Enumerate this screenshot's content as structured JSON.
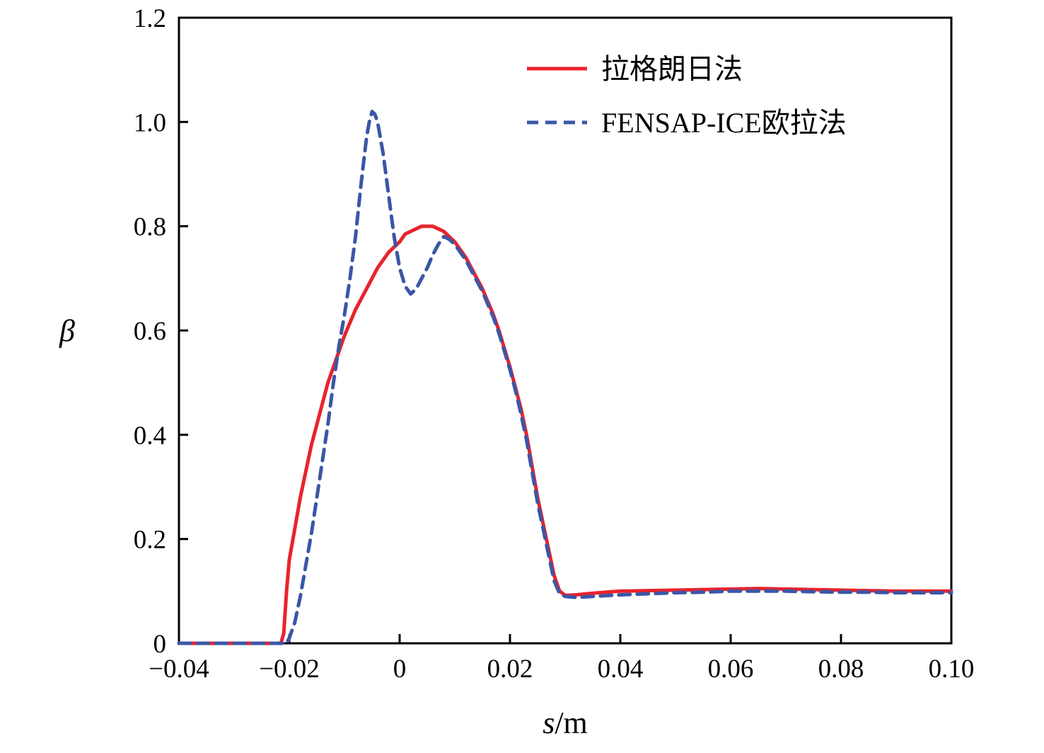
{
  "chart_data": {
    "type": "line",
    "title": "",
    "xlabel_var": "s",
    "xlabel_unit": "/m",
    "ylabel": "β",
    "xlim": [
      -0.04,
      0.1
    ],
    "ylim": [
      0,
      1.2
    ],
    "grid": false,
    "xticks": [
      -0.04,
      -0.02,
      0,
      0.02,
      0.04,
      0.06,
      0.08,
      0.1
    ],
    "xtick_labels": [
      "−0.04",
      "−0.02",
      "0",
      "0.02",
      "0.04",
      "0.06",
      "0.08",
      "0.10"
    ],
    "yticks": [
      0,
      0.2,
      0.4,
      0.6,
      0.8,
      1.0,
      1.2
    ],
    "ytick_labels": [
      "0",
      "0.2",
      "0.4",
      "0.6",
      "0.8",
      "1.0",
      "1.2"
    ],
    "legend": {
      "position": "upper-center-right",
      "items": [
        {
          "label": "拉格朗日法",
          "color": "#e8232d",
          "dash": ""
        },
        {
          "label": "FENSAP-ICE欧拉法",
          "color": "#3b56a7",
          "dash": "16 10"
        }
      ]
    },
    "series": [
      {
        "id": "lagrangian",
        "name": "拉格朗日法",
        "color": "#e8232d",
        "dash": "",
        "points": [
          [
            -0.04,
            0
          ],
          [
            -0.034,
            0
          ],
          [
            -0.028,
            0
          ],
          [
            -0.024,
            0
          ],
          [
            -0.0215,
            0
          ],
          [
            -0.021,
            0.02
          ],
          [
            -0.0205,
            0.1
          ],
          [
            -0.02,
            0.16
          ],
          [
            -0.019,
            0.22
          ],
          [
            -0.018,
            0.28
          ],
          [
            -0.017,
            0.33
          ],
          [
            -0.016,
            0.38
          ],
          [
            -0.015,
            0.42
          ],
          [
            -0.014,
            0.46
          ],
          [
            -0.013,
            0.5
          ],
          [
            -0.012,
            0.53
          ],
          [
            -0.011,
            0.56
          ],
          [
            -0.01,
            0.59
          ],
          [
            -0.009,
            0.615
          ],
          [
            -0.008,
            0.64
          ],
          [
            -0.007,
            0.66
          ],
          [
            -0.006,
            0.68
          ],
          [
            -0.005,
            0.7
          ],
          [
            -0.004,
            0.72
          ],
          [
            -0.003,
            0.735
          ],
          [
            -0.002,
            0.75
          ],
          [
            -0.001,
            0.76
          ],
          [
            0.0,
            0.77
          ],
          [
            0.001,
            0.785
          ],
          [
            0.002,
            0.79
          ],
          [
            0.003,
            0.795
          ],
          [
            0.004,
            0.8
          ],
          [
            0.005,
            0.8
          ],
          [
            0.006,
            0.8
          ],
          [
            0.007,
            0.795
          ],
          [
            0.008,
            0.79
          ],
          [
            0.009,
            0.78
          ],
          [
            0.01,
            0.77
          ],
          [
            0.011,
            0.755
          ],
          [
            0.012,
            0.74
          ],
          [
            0.013,
            0.72
          ],
          [
            0.014,
            0.7
          ],
          [
            0.015,
            0.68
          ],
          [
            0.016,
            0.655
          ],
          [
            0.017,
            0.63
          ],
          [
            0.018,
            0.6
          ],
          [
            0.019,
            0.565
          ],
          [
            0.02,
            0.53
          ],
          [
            0.021,
            0.49
          ],
          [
            0.022,
            0.45
          ],
          [
            0.023,
            0.4
          ],
          [
            0.024,
            0.34
          ],
          [
            0.025,
            0.28
          ],
          [
            0.026,
            0.23
          ],
          [
            0.027,
            0.18
          ],
          [
            0.028,
            0.13
          ],
          [
            0.029,
            0.1
          ],
          [
            0.03,
            0.092
          ],
          [
            0.032,
            0.093
          ],
          [
            0.035,
            0.096
          ],
          [
            0.04,
            0.1
          ],
          [
            0.045,
            0.101
          ],
          [
            0.05,
            0.102
          ],
          [
            0.055,
            0.103
          ],
          [
            0.06,
            0.104
          ],
          [
            0.065,
            0.105
          ],
          [
            0.07,
            0.104
          ],
          [
            0.075,
            0.103
          ],
          [
            0.08,
            0.102
          ],
          [
            0.085,
            0.101
          ],
          [
            0.09,
            0.1
          ],
          [
            0.095,
            0.1
          ],
          [
            0.1,
            0.1
          ]
        ]
      },
      {
        "id": "fensap-ice-eulerian",
        "name": "FENSAP-ICE欧拉法",
        "color": "#3b56a7",
        "dash": "16 10",
        "points": [
          [
            -0.04,
            0
          ],
          [
            -0.034,
            0
          ],
          [
            -0.028,
            0
          ],
          [
            -0.022,
            0
          ],
          [
            -0.0205,
            0
          ],
          [
            -0.02,
            0.01
          ],
          [
            -0.019,
            0.04
          ],
          [
            -0.018,
            0.09
          ],
          [
            -0.017,
            0.15
          ],
          [
            -0.016,
            0.21
          ],
          [
            -0.015,
            0.28
          ],
          [
            -0.014,
            0.35
          ],
          [
            -0.013,
            0.42
          ],
          [
            -0.012,
            0.5
          ],
          [
            -0.011,
            0.57
          ],
          [
            -0.01,
            0.63
          ],
          [
            -0.009,
            0.7
          ],
          [
            -0.008,
            0.78
          ],
          [
            -0.007,
            0.88
          ],
          [
            -0.006,
            0.97
          ],
          [
            -0.0055,
            1.0
          ],
          [
            -0.005,
            1.02
          ],
          [
            -0.0045,
            1.015
          ],
          [
            -0.004,
            1.0
          ],
          [
            -0.003,
            0.94
          ],
          [
            -0.002,
            0.86
          ],
          [
            -0.001,
            0.78
          ],
          [
            0.0,
            0.72
          ],
          [
            0.001,
            0.685
          ],
          [
            0.002,
            0.67
          ],
          [
            0.003,
            0.68
          ],
          [
            0.004,
            0.7
          ],
          [
            0.005,
            0.72
          ],
          [
            0.006,
            0.745
          ],
          [
            0.007,
            0.765
          ],
          [
            0.008,
            0.78
          ],
          [
            0.009,
            0.775
          ],
          [
            0.01,
            0.765
          ],
          [
            0.011,
            0.75
          ],
          [
            0.012,
            0.735
          ],
          [
            0.013,
            0.715
          ],
          [
            0.014,
            0.695
          ],
          [
            0.015,
            0.675
          ],
          [
            0.016,
            0.65
          ],
          [
            0.017,
            0.625
          ],
          [
            0.018,
            0.595
          ],
          [
            0.019,
            0.56
          ],
          [
            0.02,
            0.525
          ],
          [
            0.021,
            0.485
          ],
          [
            0.022,
            0.44
          ],
          [
            0.023,
            0.39
          ],
          [
            0.024,
            0.33
          ],
          [
            0.025,
            0.27
          ],
          [
            0.026,
            0.22
          ],
          [
            0.027,
            0.17
          ],
          [
            0.028,
            0.12
          ],
          [
            0.029,
            0.095
          ],
          [
            0.03,
            0.09
          ],
          [
            0.032,
            0.088
          ],
          [
            0.035,
            0.09
          ],
          [
            0.04,
            0.093
          ],
          [
            0.045,
            0.095
          ],
          [
            0.05,
            0.097
          ],
          [
            0.055,
            0.098
          ],
          [
            0.06,
            0.1
          ],
          [
            0.065,
            0.1
          ],
          [
            0.07,
            0.1
          ],
          [
            0.075,
            0.099
          ],
          [
            0.08,
            0.098
          ],
          [
            0.085,
            0.098
          ],
          [
            0.09,
            0.097
          ],
          [
            0.095,
            0.097
          ],
          [
            0.1,
            0.097
          ]
        ]
      }
    ]
  }
}
